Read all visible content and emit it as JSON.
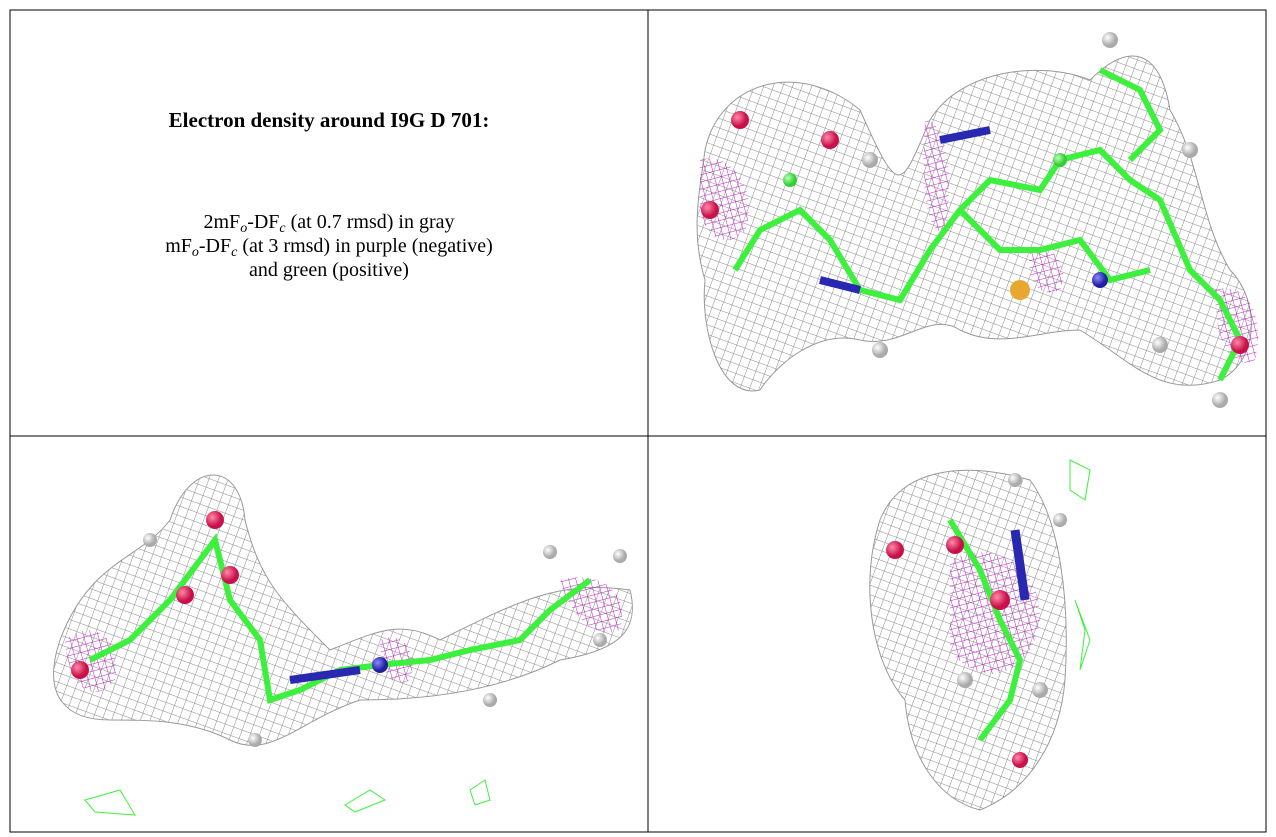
{
  "title": "Electron density around I9G D 701:",
  "legend_lines": [
    [
      "2mF",
      "o",
      "-DF",
      "c",
      " (at 0.7 rmsd) in gray"
    ],
    [
      "mF",
      "o",
      "-DF",
      "c",
      " (at 3 rmsd) in purple (negative)"
    ],
    [
      "and green (positive)"
    ]
  ]
}
